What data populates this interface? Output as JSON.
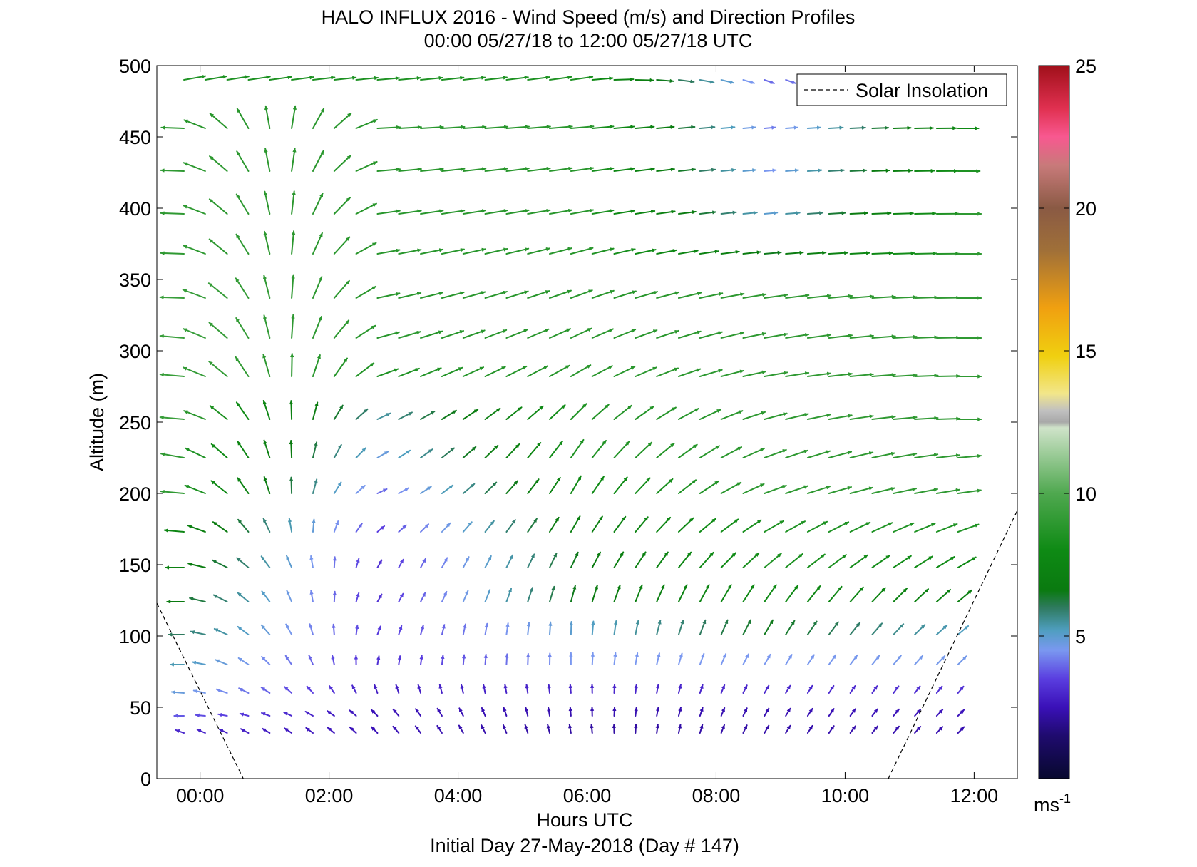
{
  "chart_data": {
    "type": "quiver",
    "title": "HALO INFLUX 2016 - Wind Speed (m/s) and Direction Profiles",
    "subtitle": "00:00 05/27/18 to 12:00 05/27/18  UTC",
    "xlabel": "Hours UTC",
    "footer": "Initial Day 27-May-2018 (Day # 147)",
    "ylabel": "Altitude (m)",
    "xlim": [
      -0.67,
      12.67
    ],
    "ylim": [
      0,
      500
    ],
    "x_ticks": [
      0,
      2,
      4,
      6,
      8,
      10,
      12
    ],
    "x_tick_labels": [
      "00:00",
      "02:00",
      "04:00",
      "06:00",
      "08:00",
      "10:00",
      "12:00"
    ],
    "y_ticks": [
      0,
      50,
      100,
      150,
      200,
      250,
      300,
      350,
      400,
      450,
      500
    ],
    "y_tick_labels": [
      "0",
      "50",
      "100",
      "150",
      "200",
      "250",
      "300",
      "350",
      "400",
      "450",
      "500"
    ],
    "colorbar": {
      "range": [
        0,
        25
      ],
      "ticks": [
        5,
        10,
        15,
        20,
        25
      ],
      "tick_labels": [
        "5",
        "10",
        "15",
        "20",
        "25"
      ],
      "unit_base": "ms",
      "unit_exp": "-1",
      "stops": [
        {
          "v": 0,
          "c": "#07082e"
        },
        {
          "v": 1.5,
          "c": "#1f0b6e"
        },
        {
          "v": 2.5,
          "c": "#3a10b8"
        },
        {
          "v": 3.5,
          "c": "#5a3ee0"
        },
        {
          "v": 4.5,
          "c": "#7a98f0"
        },
        {
          "v": 5.2,
          "c": "#4f9ec0"
        },
        {
          "v": 6,
          "c": "#2e7a5e"
        },
        {
          "v": 6.6,
          "c": "#0a7a10"
        },
        {
          "v": 8,
          "c": "#0e8a14"
        },
        {
          "v": 10,
          "c": "#4fa84f"
        },
        {
          "v": 12.3,
          "c": "#cfe3c9"
        },
        {
          "v": 12.5,
          "c": "#a8a8a8"
        },
        {
          "v": 12.9,
          "c": "#c0c0c0"
        },
        {
          "v": 13.5,
          "c": "#f2e68a"
        },
        {
          "v": 14.8,
          "c": "#f0d010"
        },
        {
          "v": 16.5,
          "c": "#f0a010"
        },
        {
          "v": 18.5,
          "c": "#a07038"
        },
        {
          "v": 20,
          "c": "#8a5a44"
        },
        {
          "v": 21.5,
          "c": "#c87a7a"
        },
        {
          "v": 22.5,
          "c": "#f85890"
        },
        {
          "v": 23.5,
          "c": "#e03050"
        },
        {
          "v": 25,
          "c": "#a0101a"
        }
      ]
    },
    "legend": {
      "position": "top-right",
      "entries": [
        {
          "label": "Solar Insolation",
          "style": "dashed",
          "color": "#000000"
        }
      ]
    },
    "solar_insolation_lines": [
      {
        "points": [
          [
            -0.67,
            123
          ],
          [
            0.67,
            0
          ]
        ]
      },
      {
        "points": [
          [
            10.67,
            0
          ],
          [
            12.67,
            188
          ]
        ]
      }
    ],
    "wind_field": {
      "hours": [
        -0.25,
        0.08,
        0.42,
        0.75,
        1.08,
        1.42,
        1.75,
        2.08,
        2.42,
        2.75,
        3.08,
        3.42,
        3.75,
        4.08,
        4.42,
        4.75,
        5.08,
        5.42,
        5.75,
        6.08,
        6.42,
        6.75,
        7.08,
        7.42,
        7.75,
        8.08,
        8.42,
        8.75,
        9.08,
        9.42,
        9.75,
        10.08,
        10.42,
        10.75,
        11.08,
        11.42,
        11.75
      ],
      "altitudes": [
        32,
        44,
        60,
        80,
        101,
        124,
        148,
        173,
        200,
        225,
        252,
        282,
        309,
        337,
        368,
        396,
        426,
        456,
        490
      ],
      "note": "Speed (m/s) and direction (degrees, direction the arrow points: 0 = toward +x, 90 = upward) estimated per altitude level at the first, middle and last hour, interpolated between.",
      "levels": [
        {
          "alt": 32,
          "speed": [
            3.0,
            2.5,
            2.2,
            2.3,
            2.4
          ],
          "dir": [
            160,
            135,
            100,
            60,
            45
          ]
        },
        {
          "alt": 44,
          "speed": [
            3.8,
            2.5,
            2.4,
            2.4,
            2.6
          ],
          "dir": [
            180,
            135,
            95,
            60,
            45
          ]
        },
        {
          "alt": 60,
          "speed": [
            4.8,
            2.8,
            3.0,
            3.0,
            3.2
          ],
          "dir": [
            175,
            110,
            95,
            60,
            50
          ]
        },
        {
          "alt": 80,
          "speed": [
            5.3,
            3.2,
            4.5,
            4.5,
            4.6
          ],
          "dir": [
            180,
            80,
            90,
            60,
            45
          ]
        },
        {
          "alt": 101,
          "speed": [
            6.0,
            3.4,
            5.0,
            6.5,
            5.2
          ],
          "dir": [
            180,
            70,
            88,
            60,
            40
          ]
        },
        {
          "alt": 124,
          "speed": [
            6.6,
            3.2,
            6.5,
            8.0,
            7.0
          ],
          "dir": [
            180,
            60,
            75,
            55,
            40
          ]
        },
        {
          "alt": 148,
          "speed": [
            7.2,
            3.2,
            6.5,
            8.5,
            8.0
          ],
          "dir": [
            180,
            60,
            65,
            40,
            30
          ]
        },
        {
          "alt": 173,
          "speed": [
            7.6,
            3.5,
            7.0,
            8.5,
            8.5
          ],
          "dir": [
            175,
            40,
            60,
            30,
            20
          ]
        },
        {
          "alt": 200,
          "speed": [
            9.0,
            4.0,
            7.8,
            9.0,
            9.0
          ],
          "dir": [
            175,
            25,
            60,
            20,
            8
          ]
        },
        {
          "alt": 225,
          "speed": [
            9.0,
            4.8,
            8.5,
            9.0,
            9.0
          ],
          "dir": [
            170,
            30,
            55,
            20,
            5
          ]
        },
        {
          "alt": 252,
          "speed": [
            9.3,
            5.5,
            8.5,
            9.0,
            9.0
          ],
          "dir": [
            175,
            25,
            45,
            15,
            0
          ]
        },
        {
          "alt": 282,
          "speed": [
            9.3,
            8.5,
            8.8,
            9.0,
            9.0
          ],
          "dir": [
            175,
            20,
            30,
            10,
            0
          ]
        },
        {
          "alt": 309,
          "speed": [
            9.3,
            8.8,
            8.8,
            9.0,
            9.0
          ],
          "dir": [
            175,
            15,
            25,
            10,
            0
          ]
        },
        {
          "alt": 337,
          "speed": [
            9.3,
            8.8,
            8.8,
            9.0,
            9.0
          ],
          "dir": [
            178,
            12,
            20,
            8,
            0
          ]
        },
        {
          "alt": 368,
          "speed": [
            9.0,
            8.8,
            8.8,
            6.5,
            9.0
          ],
          "dir": [
            178,
            10,
            15,
            5,
            0
          ]
        },
        {
          "alt": 396,
          "speed": [
            9.0,
            8.8,
            8.8,
            5.0,
            9.0
          ],
          "dir": [
            178,
            8,
            10,
            5,
            0
          ]
        },
        {
          "alt": 426,
          "speed": [
            9.0,
            8.8,
            8.8,
            4.5,
            8.5
          ],
          "dir": [
            178,
            5,
            8,
            5,
            0
          ]
        },
        {
          "alt": 456,
          "speed": [
            8.8,
            8.8,
            8.8,
            4.2,
            8.0
          ],
          "dir": [
            178,
            3,
            5,
            5,
            0
          ]
        },
        {
          "alt": 490,
          "speed": [
            8.5,
            8.5,
            8.5,
            4.0,
            4.5
          ],
          "dir": [
            10,
            5,
            8,
            -20,
            -15
          ]
        }
      ]
    }
  }
}
